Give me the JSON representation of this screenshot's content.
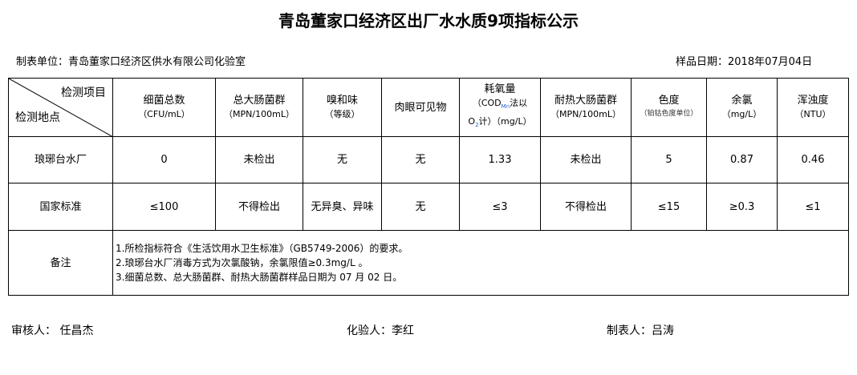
{
  "title": "青岛董家口经济区出厂水水质9项指标公示",
  "unit": "制表单位：青岛董家口经济区供水有限公司化验室",
  "sample_date": "样品日期：2018年07月04日",
  "table": {
    "corner_top": "检测项目",
    "corner_bottom": "检测地点",
    "headers": [
      {
        "name": "细菌总数",
        "unit": "（CFU/mL）"
      },
      {
        "name": "总大肠菌群",
        "unit": "（MPN/100mL）"
      },
      {
        "name": "嗅和味",
        "unit": "（等级）"
      },
      {
        "name": "肉眼可见物",
        "unit": ""
      },
      {
        "name": "耗氧量",
        "unit": "（COD",
        "unit_sub": "Mn",
        "unit2": "法以",
        "unit3": "O",
        "unit3_sub": "2",
        "unit4": "计）（mg/L）"
      },
      {
        "name": "耐热大肠菌群",
        "unit": "（MPN/100mL）"
      },
      {
        "name": "色度",
        "unit": "（铂钴色度单位）"
      },
      {
        "name": "余氯",
        "unit": "（mg/L）"
      },
      {
        "name": "浑浊度",
        "unit": "（NTU）"
      }
    ],
    "rows": [
      {
        "label": "琅琊台水厂",
        "values": [
          "0",
          "未检出",
          "无",
          "无",
          "1.33",
          "未检出",
          "5",
          "0.87",
          "0.46"
        ]
      },
      {
        "label": "国家标准",
        "values": [
          "≤100",
          "不得检出",
          "无异臭、异味",
          "无",
          "≤3",
          "不得检出",
          "≤15",
          "≥0.3",
          "≤1"
        ]
      }
    ],
    "notes_label": "备注",
    "notes": [
      "1.所检指标符合《生活饮用水卫生标准》（GB5749-2006）的要求。",
      "2.琅琊台水厂消毒方式为次氯酸钠，余氯限值≥0.3mg/L 。",
      "3.细菌总数、总大肠菌群、耐热大肠菌群样品日期为 07 月 02 日。"
    ]
  },
  "footer": {
    "reviewer": "审核人：  任昌杰",
    "tester": "化验人：李红",
    "preparer": "制表人：吕涛"
  }
}
